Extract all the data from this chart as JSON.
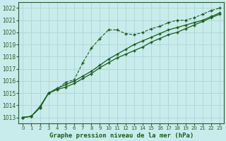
{
  "xlabel": "Graphe pression niveau de la mer (hPa)",
  "background_color": "#c8ecec",
  "grid_color": "#b0d8d8",
  "line_color": "#1a5c1a",
  "xlim": [
    -0.5,
    23.5
  ],
  "ylim": [
    1012.5,
    1022.5
  ],
  "yticks": [
    1013,
    1014,
    1015,
    1016,
    1017,
    1018,
    1019,
    1020,
    1021,
    1022
  ],
  "xticks": [
    0,
    1,
    2,
    3,
    4,
    5,
    6,
    7,
    8,
    9,
    10,
    11,
    12,
    13,
    14,
    15,
    16,
    17,
    18,
    19,
    20,
    21,
    22,
    23
  ],
  "line_dashed_x": [
    0,
    1,
    2,
    3,
    4,
    5,
    6,
    7,
    8,
    9,
    10,
    11,
    12,
    13,
    14,
    15,
    16,
    17,
    18,
    19,
    20,
    21,
    22,
    23
  ],
  "line_dashed_y": [
    1013.0,
    1013.1,
    1013.8,
    1015.0,
    1015.3,
    1015.9,
    1016.1,
    1017.5,
    1018.7,
    1019.5,
    1020.2,
    1020.2,
    1019.9,
    1019.8,
    1020.0,
    1020.3,
    1020.5,
    1020.8,
    1021.0,
    1021.0,
    1021.2,
    1021.5,
    1021.8,
    1022.0
  ],
  "line_solid1_x": [
    0,
    1,
    2,
    3,
    4,
    5,
    6,
    7,
    8,
    9,
    10,
    11,
    12,
    13,
    14,
    15,
    16,
    17,
    18,
    19,
    20,
    21,
    22,
    23
  ],
  "line_solid1_y": [
    1013.0,
    1013.1,
    1013.8,
    1015.0,
    1015.3,
    1015.5,
    1015.8,
    1016.2,
    1016.6,
    1017.1,
    1017.5,
    1017.9,
    1018.2,
    1018.5,
    1018.8,
    1019.2,
    1019.5,
    1019.8,
    1020.0,
    1020.3,
    1020.6,
    1020.9,
    1021.2,
    1021.5
  ],
  "line_solid2_x": [
    0,
    1,
    2,
    3,
    4,
    5,
    6,
    7,
    8,
    9,
    10,
    11,
    12,
    13,
    14,
    15,
    16,
    17,
    18,
    19,
    20,
    21,
    22,
    23
  ],
  "line_solid2_y": [
    1013.0,
    1013.1,
    1013.9,
    1015.0,
    1015.4,
    1015.7,
    1016.0,
    1016.4,
    1016.8,
    1017.3,
    1017.8,
    1018.2,
    1018.6,
    1019.0,
    1019.3,
    1019.6,
    1019.9,
    1020.2,
    1020.4,
    1020.6,
    1020.8,
    1021.0,
    1021.3,
    1021.6
  ]
}
